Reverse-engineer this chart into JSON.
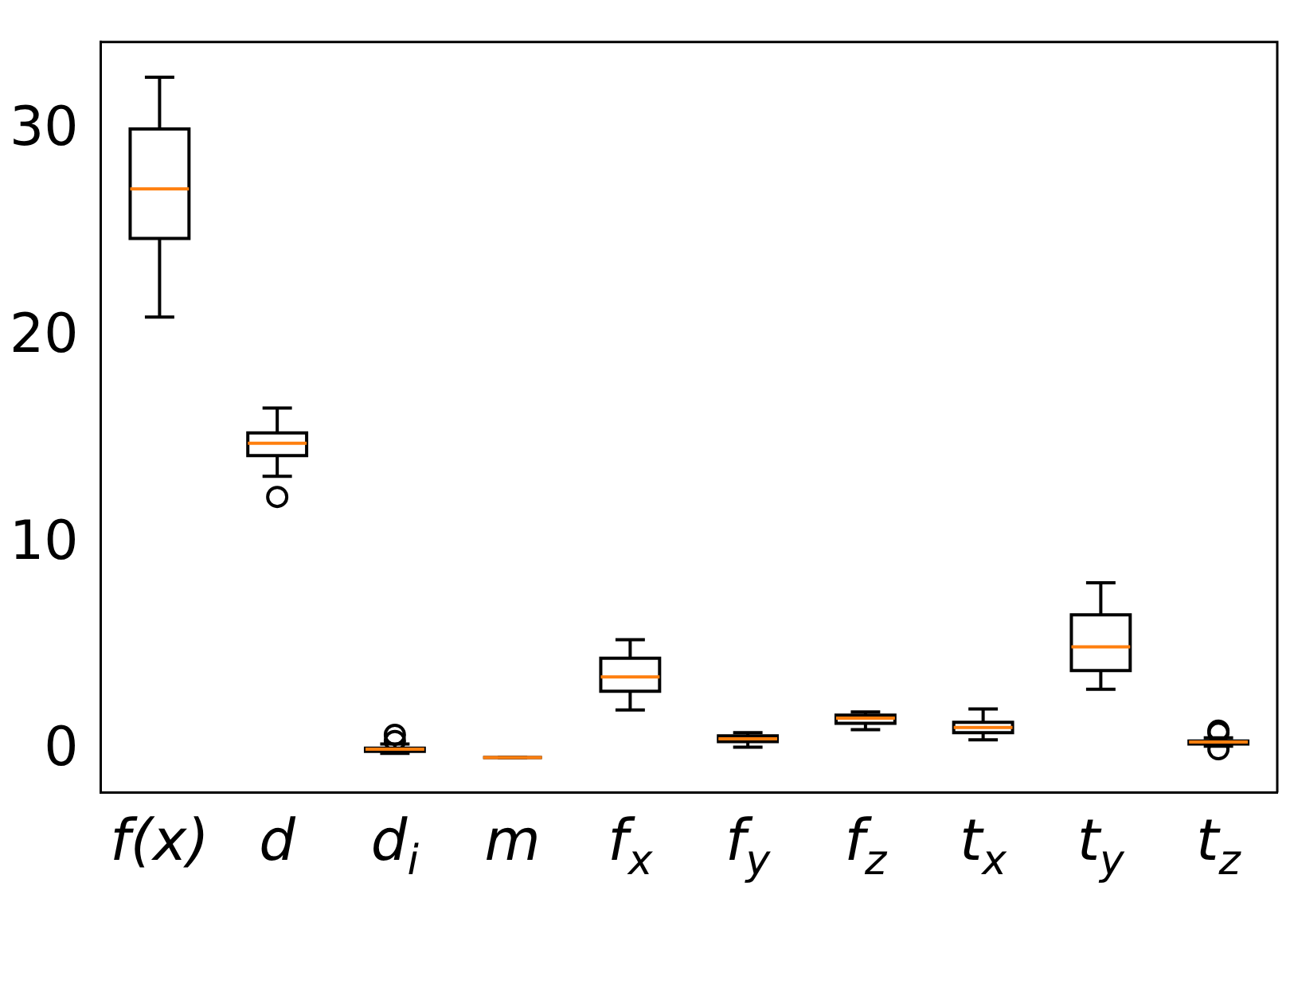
{
  "chart_data": {
    "type": "box",
    "categories": [
      "f(x)",
      "d",
      "d$_{i}$",
      "m",
      "f$_{x}$",
      "f$_{y}$",
      "f$_{z}$",
      "t$_{x}$",
      "t$_{y}$",
      "t$_{z}$"
    ],
    "ylim": [
      -2,
      34.3
    ],
    "yticks": [
      0,
      10,
      20,
      30
    ],
    "grid": false,
    "legend": false,
    "boxes": [
      {
        "low": 21.0,
        "q1": 24.8,
        "median": 27.2,
        "q3": 30.1,
        "high": 32.6
      },
      {
        "low": 13.3,
        "q1": 14.3,
        "median": 14.9,
        "q3": 15.4,
        "high": 16.6,
        "outliers": [
          12.3
        ]
      },
      {
        "low": -0.1,
        "q1": 0.0,
        "median": 0.1,
        "q3": 0.15,
        "high": 0.35,
        "outliers": [
          0.5,
          0.8
        ]
      },
      {
        "low": -0.3,
        "q1": -0.3,
        "median": -0.3,
        "q3": -0.3,
        "high": -0.3
      },
      {
        "low": 2.0,
        "q1": 2.9,
        "median": 3.6,
        "q3": 4.5,
        "high": 5.4
      },
      {
        "low": 0.2,
        "q1": 0.47,
        "median": 0.6,
        "q3": 0.75,
        "high": 0.9
      },
      {
        "low": 1.05,
        "q1": 1.35,
        "median": 1.6,
        "q3": 1.75,
        "high": 1.9
      },
      {
        "low": 0.55,
        "q1": 0.9,
        "median": 1.15,
        "q3": 1.4,
        "high": 2.05
      },
      {
        "low": 3.0,
        "q1": 3.9,
        "median": 5.05,
        "q3": 6.6,
        "high": 8.15
      },
      {
        "low": 0.25,
        "q1": 0.35,
        "median": 0.45,
        "q3": 0.5,
        "high": 0.65,
        "outliers": [
          0.1,
          0.9,
          1.0
        ]
      }
    ]
  }
}
